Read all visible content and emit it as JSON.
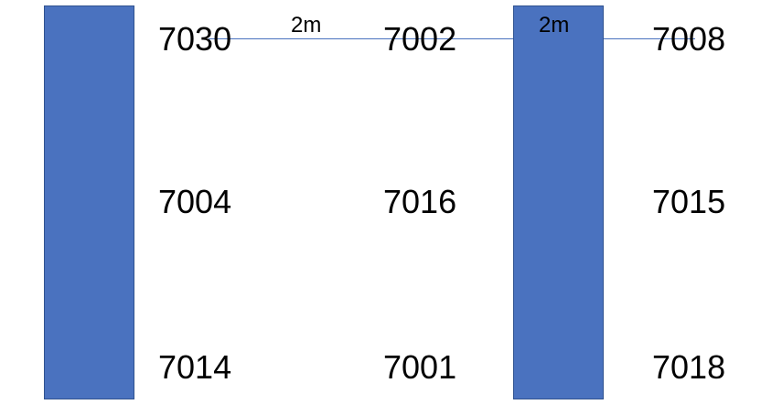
{
  "dimensions": [
    {
      "id": "gap-1",
      "text": "2m"
    },
    {
      "id": "gap-2",
      "text": "2m"
    }
  ],
  "labels": {
    "r1c1": "7030",
    "r1c2": "7002",
    "r1c3": "7008",
    "r2c1": "7004",
    "r2c2": "7016",
    "r2c3": "7015",
    "r3c1": "7014",
    "r3c2": "7001",
    "r3c3": "7018"
  },
  "colors": {
    "bar_fill": "#4a72bf",
    "bar_border": "#2f528f",
    "text": "#000000"
  }
}
